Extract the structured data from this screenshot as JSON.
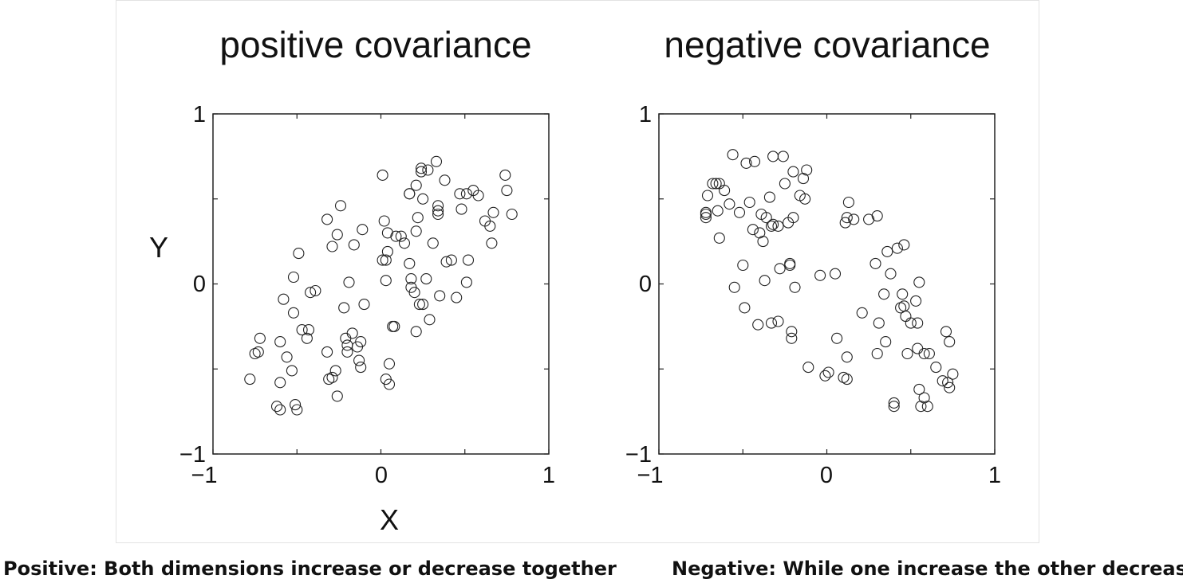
{
  "captions": {
    "left": "Positive: Both dimensions increase or decrease together",
    "right": "Negative: While one increase the other decrease"
  },
  "chart_data": [
    {
      "type": "scatter",
      "title": "positive covariance",
      "xlabel": "X",
      "ylabel": "Y",
      "xlim": [
        -1,
        1
      ],
      "ylim": [
        -1,
        1
      ],
      "xticks": [
        "−1",
        "0",
        "1"
      ],
      "yticks": [
        "−1",
        "0",
        "1"
      ],
      "grid": false,
      "marker": "open-circle",
      "points": [
        [
          -0.78,
          -0.56
        ],
        [
          -0.73,
          -0.4
        ],
        [
          -0.72,
          -0.32
        ],
        [
          -0.75,
          -0.41
        ],
        [
          -0.62,
          -0.72
        ],
        [
          -0.6,
          -0.74
        ],
        [
          -0.6,
          -0.58
        ],
        [
          -0.6,
          -0.34
        ],
        [
          -0.58,
          -0.09
        ],
        [
          -0.56,
          -0.43
        ],
        [
          -0.53,
          -0.51
        ],
        [
          -0.52,
          -0.17
        ],
        [
          -0.51,
          -0.71
        ],
        [
          -0.5,
          -0.74
        ],
        [
          -0.52,
          0.04
        ],
        [
          -0.49,
          0.18
        ],
        [
          -0.47,
          -0.27
        ],
        [
          -0.44,
          -0.32
        ],
        [
          -0.43,
          -0.27
        ],
        [
          -0.42,
          -0.05
        ],
        [
          -0.39,
          -0.04
        ],
        [
          -0.32,
          0.38
        ],
        [
          -0.32,
          -0.4
        ],
        [
          -0.31,
          -0.56
        ],
        [
          -0.29,
          -0.55
        ],
        [
          -0.29,
          0.22
        ],
        [
          -0.27,
          -0.51
        ],
        [
          -0.26,
          -0.66
        ],
        [
          -0.26,
          0.29
        ],
        [
          -0.24,
          0.46
        ],
        [
          -0.22,
          -0.14
        ],
        [
          -0.21,
          -0.32
        ],
        [
          -0.2,
          -0.36
        ],
        [
          -0.2,
          -0.4
        ],
        [
          -0.19,
          0.01
        ],
        [
          -0.17,
          -0.29
        ],
        [
          -0.16,
          0.23
        ],
        [
          -0.14,
          -0.37
        ],
        [
          -0.13,
          -0.45
        ],
        [
          -0.12,
          -0.49
        ],
        [
          -0.12,
          -0.34
        ],
        [
          -0.11,
          0.32
        ],
        [
          -0.1,
          -0.12
        ],
        [
          0.01,
          0.64
        ],
        [
          0.01,
          0.14
        ],
        [
          0.02,
          0.37
        ],
        [
          0.03,
          0.14
        ],
        [
          0.03,
          0.02
        ],
        [
          0.03,
          -0.56
        ],
        [
          0.04,
          0.3
        ],
        [
          0.04,
          0.19
        ],
        [
          0.05,
          -0.47
        ],
        [
          0.05,
          -0.59
        ],
        [
          0.07,
          -0.25
        ],
        [
          0.08,
          -0.25
        ],
        [
          0.09,
          0.28
        ],
        [
          0.12,
          0.28
        ],
        [
          0.14,
          0.24
        ],
        [
          0.17,
          0.53
        ],
        [
          0.17,
          0.53
        ],
        [
          0.17,
          0.12
        ],
        [
          0.18,
          0.03
        ],
        [
          0.18,
          -0.02
        ],
        [
          0.2,
          -0.05
        ],
        [
          0.21,
          0.58
        ],
        [
          0.21,
          0.31
        ],
        [
          0.21,
          -0.28
        ],
        [
          0.22,
          0.39
        ],
        [
          0.23,
          -0.12
        ],
        [
          0.24,
          0.68
        ],
        [
          0.24,
          0.66
        ],
        [
          0.25,
          0.5
        ],
        [
          0.25,
          -0.12
        ],
        [
          0.27,
          0.03
        ],
        [
          0.28,
          0.67
        ],
        [
          0.29,
          -0.21
        ],
        [
          0.31,
          0.24
        ],
        [
          0.33,
          0.72
        ],
        [
          0.34,
          0.46
        ],
        [
          0.34,
          0.43
        ],
        [
          0.34,
          0.41
        ],
        [
          0.35,
          -0.07
        ],
        [
          0.38,
          0.61
        ],
        [
          0.39,
          0.13
        ],
        [
          0.42,
          0.14
        ],
        [
          0.45,
          -0.08
        ],
        [
          0.47,
          0.53
        ],
        [
          0.48,
          0.44
        ],
        [
          0.51,
          0.53
        ],
        [
          0.51,
          0.01
        ],
        [
          0.52,
          0.14
        ],
        [
          0.55,
          0.55
        ],
        [
          0.58,
          0.52
        ],
        [
          0.62,
          0.37
        ],
        [
          0.65,
          0.34
        ],
        [
          0.66,
          0.24
        ],
        [
          0.67,
          0.42
        ],
        [
          0.74,
          0.64
        ],
        [
          0.75,
          0.55
        ],
        [
          0.78,
          0.41
        ]
      ]
    },
    {
      "type": "scatter",
      "title": "negative covariance",
      "xlabel": "",
      "ylabel": "",
      "xlim": [
        -1,
        1
      ],
      "ylim": [
        -1,
        1
      ],
      "xticks": [
        "−1",
        "0",
        "1"
      ],
      "yticks": [
        "−1",
        "0",
        "1"
      ],
      "grid": false,
      "marker": "open-circle",
      "points": [
        [
          -0.72,
          0.42
        ],
        [
          -0.72,
          0.39
        ],
        [
          -0.72,
          0.41
        ],
        [
          -0.71,
          0.52
        ],
        [
          -0.68,
          0.59
        ],
        [
          -0.66,
          0.59
        ],
        [
          -0.65,
          0.43
        ],
        [
          -0.64,
          0.27
        ],
        [
          -0.64,
          0.59
        ],
        [
          -0.61,
          0.55
        ],
        [
          -0.58,
          0.47
        ],
        [
          -0.56,
          0.76
        ],
        [
          -0.55,
          -0.02
        ],
        [
          -0.52,
          0.42
        ],
        [
          -0.5,
          0.11
        ],
        [
          -0.49,
          -0.14
        ],
        [
          -0.48,
          0.71
        ],
        [
          -0.46,
          0.48
        ],
        [
          -0.44,
          0.32
        ],
        [
          -0.43,
          0.72
        ],
        [
          -0.41,
          -0.24
        ],
        [
          -0.4,
          0.3
        ],
        [
          -0.39,
          0.41
        ],
        [
          -0.38,
          0.25
        ],
        [
          -0.37,
          0.02
        ],
        [
          -0.36,
          0.39
        ],
        [
          -0.34,
          0.51
        ],
        [
          -0.33,
          0.34
        ],
        [
          -0.33,
          -0.23
        ],
        [
          -0.32,
          0.75
        ],
        [
          -0.32,
          0.35
        ],
        [
          -0.29,
          0.34
        ],
        [
          -0.29,
          -0.22
        ],
        [
          -0.28,
          0.09
        ],
        [
          -0.26,
          0.75
        ],
        [
          -0.25,
          0.59
        ],
        [
          -0.23,
          0.36
        ],
        [
          -0.22,
          0.12
        ],
        [
          -0.22,
          0.11
        ],
        [
          -0.21,
          -0.32
        ],
        [
          -0.21,
          -0.28
        ],
        [
          -0.2,
          0.66
        ],
        [
          -0.2,
          0.39
        ],
        [
          -0.19,
          -0.02
        ],
        [
          -0.16,
          0.52
        ],
        [
          -0.14,
          0.62
        ],
        [
          -0.13,
          0.5
        ],
        [
          -0.12,
          0.67
        ],
        [
          -0.11,
          -0.49
        ],
        [
          -0.04,
          0.05
        ],
        [
          -0.01,
          -0.54
        ],
        [
          0.01,
          -0.52
        ],
        [
          0.05,
          0.06
        ],
        [
          0.06,
          -0.32
        ],
        [
          0.1,
          -0.55
        ],
        [
          0.11,
          0.36
        ],
        [
          0.12,
          0.39
        ],
        [
          0.12,
          -0.56
        ],
        [
          0.12,
          -0.43
        ],
        [
          0.13,
          0.48
        ],
        [
          0.16,
          0.38
        ],
        [
          0.21,
          -0.17
        ],
        [
          0.25,
          0.38
        ],
        [
          0.29,
          0.12
        ],
        [
          0.3,
          0.4
        ],
        [
          0.3,
          -0.41
        ],
        [
          0.31,
          -0.23
        ],
        [
          0.34,
          -0.06
        ],
        [
          0.35,
          -0.34
        ],
        [
          0.36,
          0.19
        ],
        [
          0.38,
          0.06
        ],
        [
          0.4,
          -0.7
        ],
        [
          0.4,
          -0.72
        ],
        [
          0.42,
          0.21
        ],
        [
          0.44,
          -0.14
        ],
        [
          0.45,
          -0.06
        ],
        [
          0.46,
          -0.13
        ],
        [
          0.46,
          0.23
        ],
        [
          0.47,
          -0.19
        ],
        [
          0.48,
          -0.41
        ],
        [
          0.5,
          -0.23
        ],
        [
          0.53,
          -0.1
        ],
        [
          0.54,
          -0.23
        ],
        [
          0.54,
          -0.38
        ],
        [
          0.55,
          0.01
        ],
        [
          0.55,
          -0.62
        ],
        [
          0.56,
          -0.72
        ],
        [
          0.58,
          -0.67
        ],
        [
          0.58,
          -0.41
        ],
        [
          0.6,
          -0.72
        ],
        [
          0.61,
          -0.41
        ],
        [
          0.65,
          -0.49
        ],
        [
          0.69,
          -0.57
        ],
        [
          0.71,
          -0.28
        ],
        [
          0.72,
          -0.58
        ],
        [
          0.73,
          -0.34
        ],
        [
          0.73,
          -0.61
        ],
        [
          0.75,
          -0.53
        ]
      ]
    }
  ]
}
